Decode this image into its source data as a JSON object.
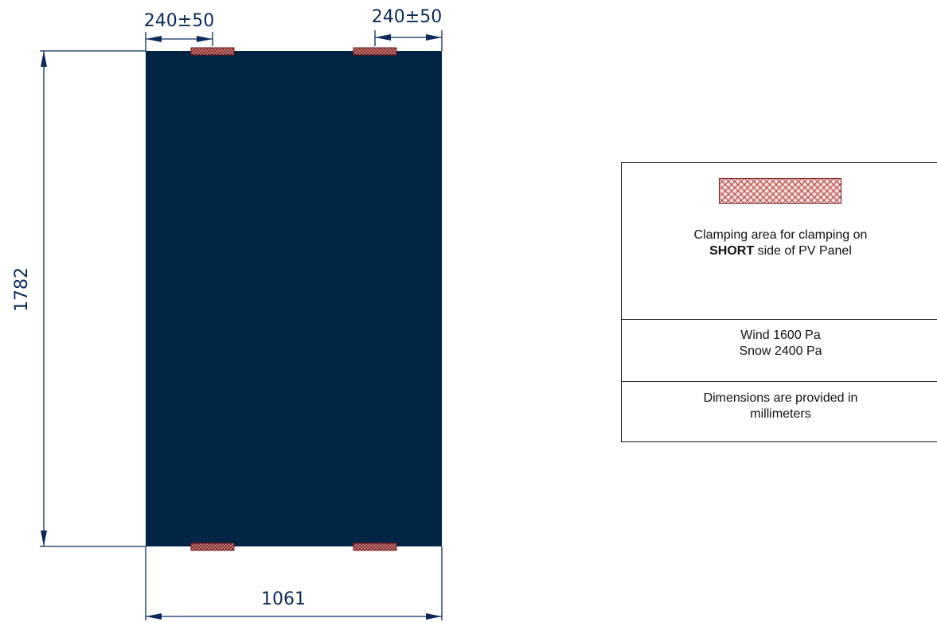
{
  "dimensions": {
    "top_left_offset": "240±50",
    "top_right_offset": "240±50",
    "height": "1782",
    "width": "1061"
  },
  "legend": {
    "clamping": {
      "line1": "Clamping area  for clamping on",
      "line2_bold": "SHORT",
      "line2_rest": " side of PV Panel"
    },
    "loads": {
      "wind": "Wind 1600 Pa",
      "snow": "Snow 2400 Pa"
    },
    "units": {
      "line1": "Dimensions are provided in",
      "line2": "millimeters"
    }
  },
  "colors": {
    "panel": "#022445",
    "clamp": "#7a1414",
    "dimension": "#0b2a5a",
    "swatch_hatch": "#b73b3b",
    "swatch_fill": "#f4dede"
  }
}
